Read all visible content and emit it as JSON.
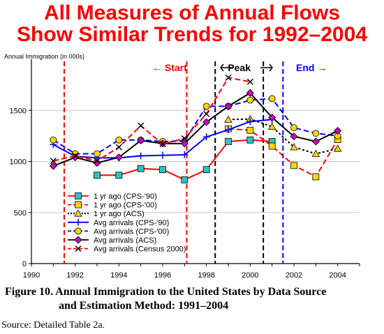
{
  "title_line1": "All Measures of Annual Flows",
  "title_line2": "Show Similar Trends for 1992–2004",
  "caption_line1": "Figure 10.  Annual Immigration to the United States by Data Source",
  "caption_line2": "and Estimation Method:  1991–2004",
  "source": "Source:  Detailed Table 2a.",
  "chart_data": {
    "type": "line",
    "ylabel": "Annual Immigration (in 000s)",
    "xlim": [
      1990,
      2005
    ],
    "ylim": [
      0,
      2000
    ],
    "x_ticks": [
      1990,
      1992,
      1994,
      1996,
      1998,
      2000,
      2002,
      2004
    ],
    "y_ticks": [
      0,
      500,
      1000,
      1500
    ],
    "grid": true,
    "legend_position": "bottom-left",
    "period_lines": [
      {
        "label": "← Start",
        "x": 1991.5,
        "color": "#ff0000"
      },
      {
        "label": "",
        "x": 1997.1,
        "color": "#ff0000"
      },
      {
        "label": "",
        "x": 1998.4,
        "color": "#000000"
      },
      {
        "label": "Peak",
        "x": 2000.6,
        "color": "#000000"
      },
      {
        "label": "End →",
        "x": 2001.5,
        "color": "#0000ff"
      }
    ],
    "period_labels": [
      {
        "text": "← Start",
        "color": "#ff0000"
      },
      {
        "text": "Peak",
        "color": "#000000"
      },
      {
        "text": "End →",
        "color": "#0000ff"
      }
    ],
    "series": [
      {
        "name": "1 yr ago (CPS-'90)",
        "color": "#ff0000",
        "dash": "solid",
        "marker": "square",
        "marker_fill": "#29c5c5",
        "x": [
          1993,
          1994,
          1995,
          1996,
          1997,
          1998,
          1999,
          2000,
          2001
        ],
        "y": [
          865,
          865,
          930,
          920,
          820,
          920,
          1195,
          1210,
          1195
        ]
      },
      {
        "name": "1 yr ago (CPS-'00)",
        "color": "#ff0000",
        "dash": "dashed",
        "marker": "square",
        "marker_fill": "#ffd700",
        "x": [
          1999,
          2000,
          2001,
          2002,
          2003,
          2004
        ],
        "y": [
          1320,
          1305,
          1150,
          960,
          850,
          1215
        ]
      },
      {
        "name": "1 yr ago (ACS)",
        "color": "#000000",
        "dash": "dotted",
        "marker": "triangle",
        "marker_fill": "#ffd700",
        "x": [
          1999,
          2000,
          2001,
          2002,
          2003,
          2004
        ],
        "y": [
          1410,
          1415,
          1340,
          1140,
          1075,
          1125
        ]
      },
      {
        "name": "Avg arrivals (CPS-'90)",
        "color": "#0000ff",
        "dash": "solid",
        "marker": "plus",
        "marker_fill": "#0000ff",
        "x": [
          1991,
          1992,
          1993,
          1994,
          1995,
          1996,
          1997,
          1998,
          1999,
          2000,
          2001
        ],
        "y": [
          1165,
          1050,
          1035,
          1035,
          1055,
          1060,
          1065,
          1240,
          1310,
          1390,
          1410
        ]
      },
      {
        "name": "Avg arrivals (CPS-'00)",
        "color": "#0000ff",
        "dash": "dashed",
        "marker": "circle",
        "marker_fill": "#ffd700",
        "x": [
          1991,
          1992,
          1993,
          1994,
          1995,
          1996,
          1997,
          1998,
          1999,
          2000,
          2001,
          2002,
          2003,
          2004
        ],
        "y": [
          1210,
          1075,
          1075,
          1210,
          1210,
          1195,
          1200,
          1540,
          1540,
          1600,
          1615,
          1330,
          1275,
          1250
        ]
      },
      {
        "name": "Avg arrivals (ACS)",
        "color": "#000000",
        "dash": "solid",
        "marker": "diamond",
        "marker_fill": "#cc00cc",
        "x": [
          1991,
          1992,
          1993,
          1994,
          1995,
          1996,
          1997,
          1998,
          1999,
          2000,
          2001,
          2002,
          2003,
          2004
        ],
        "y": [
          955,
          1040,
          985,
          1040,
          1205,
          1175,
          1175,
          1385,
          1540,
          1670,
          1430,
          1245,
          1195,
          1300
        ]
      },
      {
        "name": "Avg arrivals (Census 2000)",
        "color": "#ff0000",
        "dash": "dashed",
        "marker": "x",
        "marker_fill": "#000000",
        "x": [
          1991,
          1992,
          1993,
          1994,
          1995,
          1996,
          1997,
          1998,
          1999,
          2000
        ],
        "y": [
          1005,
          1055,
          1005,
          1140,
          1350,
          1170,
          1225,
          1465,
          1820,
          1780
        ]
      }
    ]
  }
}
